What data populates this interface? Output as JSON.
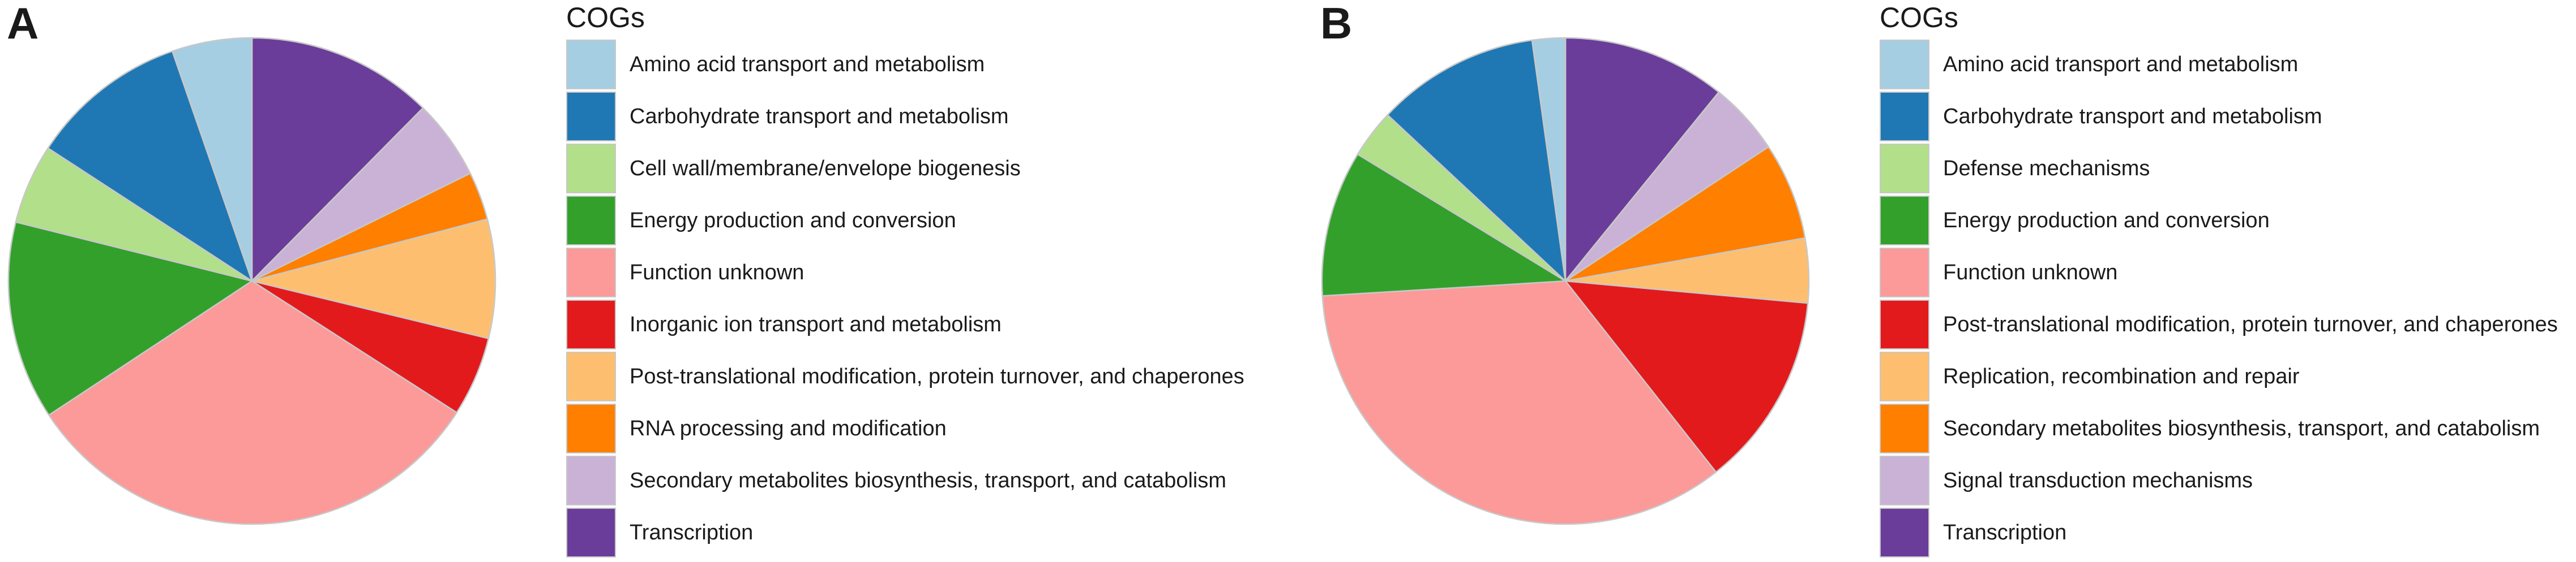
{
  "chart_data": [
    {
      "panel": "A",
      "type": "pie",
      "legend_title": "COGs",
      "categories": [
        "Amino acid transport and metabolism",
        "Carbohydrate transport and metabolism",
        "Cell wall/membrane/envelope biogenesis",
        "Energy production and conversion",
        "Function unknown",
        "Inorganic ion transport and metabolism",
        "Post-translational modification, protein turnover, and chaperones",
        "RNA processing and modification",
        "Secondary metabolites biosynthesis, transport, and catabolism",
        "Transcription"
      ],
      "colors": [
        "#a6cee3",
        "#1f78b4",
        "#b2df8a",
        "#33a02c",
        "#fb9a99",
        "#e31a1c",
        "#fdbf6f",
        "#ff7f00",
        "#cab2d6",
        "#6a3d9a"
      ],
      "values": [
        5.3,
        10.5,
        5.3,
        13.2,
        31.6,
        5.3,
        7.9,
        3.2,
        5.3,
        12.4
      ],
      "draw_order": [
        9,
        8,
        7,
        6,
        5,
        4,
        3,
        2,
        1,
        0
      ],
      "start_angle_deg": 90,
      "direction": "clockwise",
      "legend_placement": "right"
    },
    {
      "panel": "B",
      "type": "pie",
      "legend_title": "COGs",
      "categories": [
        "Amino acid transport and metabolism",
        "Carbohydrate transport and metabolism",
        "Defense mechanisms",
        "Energy production and conversion",
        "Function unknown",
        "Post-translational modification, protein turnover, and chaperones",
        "Replication, recombination and repair",
        "Secondary metabolites biosynthesis, transport, and catabolism",
        "Signal transduction mechanisms",
        "Transcription"
      ],
      "colors": [
        "#a6cee3",
        "#1f78b4",
        "#b2df8a",
        "#33a02c",
        "#fb9a99",
        "#e31a1c",
        "#fdbf6f",
        "#ff7f00",
        "#cab2d6",
        "#6a3d9a"
      ],
      "values": [
        2.3,
        11.4,
        3.4,
        10.2,
        36.4,
        13.6,
        4.5,
        6.8,
        5.1,
        11.4
      ],
      "draw_order": [
        9,
        8,
        7,
        6,
        5,
        4,
        3,
        2,
        1,
        0
      ],
      "start_angle_deg": 90,
      "direction": "clockwise",
      "legend_placement": "right"
    }
  ]
}
